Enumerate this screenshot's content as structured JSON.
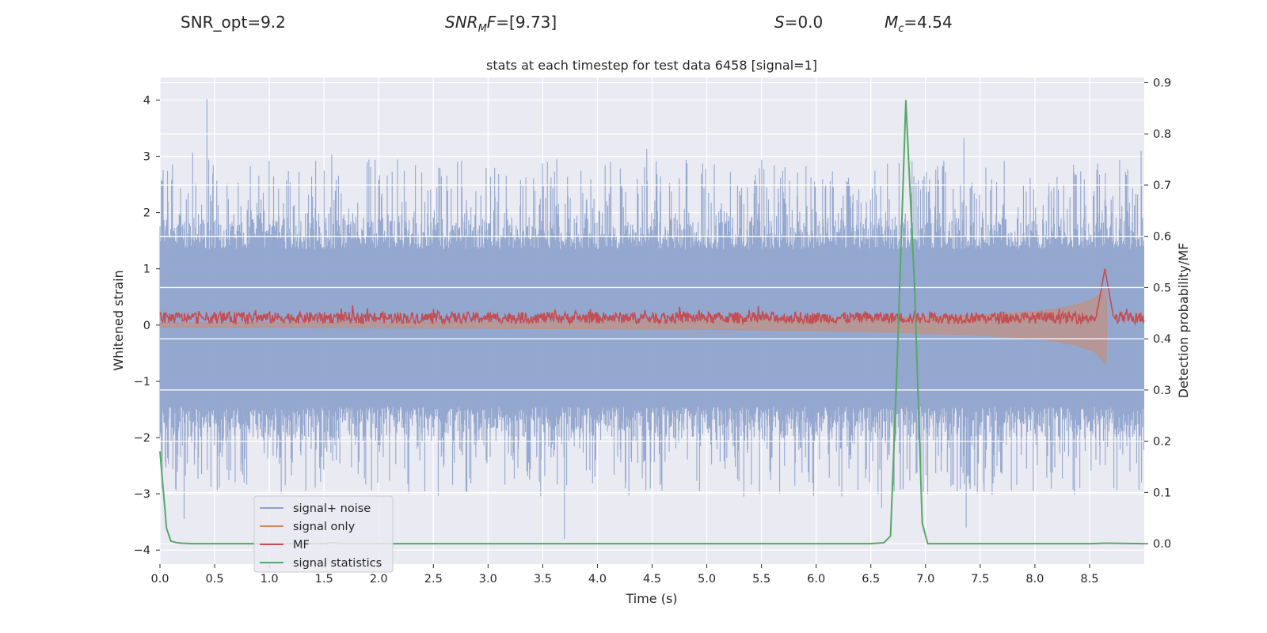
{
  "header": {
    "snr_opt": "SNR_opt=9.2",
    "snr_mf_base": "SNR",
    "snr_mf_sub": "M",
    "snr_mf_rest": "F",
    "snr_mf_value": "=[9.73]",
    "s_symbol": "S",
    "s_value": "=0.0",
    "mc_symbol": "M",
    "mc_sub": "c",
    "mc_value": "=4.54"
  },
  "chart_data": {
    "type": "line",
    "title": "stats at each timestep for test data 6458 [signal=1]",
    "xlabel": "Time (s)",
    "ylabel": "Whitened strain",
    "ylabel_right": "Detection probability/MF",
    "xlim": [
      0.0,
      9.0
    ],
    "ylim": [
      -4.25,
      4.4
    ],
    "ylim_right": [
      -0.04,
      0.91
    ],
    "xticks": [
      "0.0",
      "0.5",
      "1.0",
      "1.5",
      "2.0",
      "2.5",
      "3.0",
      "3.5",
      "4.0",
      "4.5",
      "5.0",
      "5.5",
      "6.0",
      "6.5",
      "7.0",
      "7.5",
      "8.0",
      "8.5"
    ],
    "yticks_left": [
      "4",
      "3",
      "2",
      "1",
      "0",
      "−1",
      "−2",
      "−3",
      "−4"
    ],
    "yticks_left_values": [
      4,
      3,
      2,
      1,
      0,
      -1,
      -2,
      -3,
      -4
    ],
    "yticks_right": [
      "0.9",
      "0.8",
      "0.7",
      "0.6",
      "0.5",
      "0.4",
      "0.3",
      "0.2",
      "0.1",
      "0.0"
    ],
    "yticks_right_values": [
      0.9,
      0.8,
      0.7,
      0.6,
      0.5,
      0.4,
      0.3,
      0.2,
      0.1,
      0.0
    ],
    "grid": true,
    "legend_position": "lower-left",
    "legend": [
      {
        "label": "signal+ noise",
        "color": "#8fa3cc"
      },
      {
        "label": "signal only",
        "color": "#dd8452"
      },
      {
        "label": "MF",
        "color": "#c44e52"
      },
      {
        "label": "signal statistics",
        "color": "#55a868"
      }
    ],
    "series": [
      {
        "name": "signal statistics",
        "axis": "right",
        "color": "#55a868",
        "x": [
          0.0,
          0.02,
          0.06,
          0.1,
          0.15,
          0.2,
          0.3,
          0.5,
          1.0,
          1.5,
          1.58,
          1.7,
          2.0,
          3.0,
          4.0,
          5.0,
          6.0,
          6.5,
          6.62,
          6.68,
          6.74,
          6.82,
          6.9,
          6.97,
          7.02,
          7.5,
          8.0,
          8.5,
          8.65,
          9.0
        ],
        "values": [
          0.18,
          0.13,
          0.03,
          0.005,
          0.002,
          0.001,
          0.0,
          0.0,
          0.0,
          0.0,
          0.002,
          0.0,
          0.0,
          0.0,
          0.0,
          0.0,
          0.0,
          0.0,
          0.002,
          0.015,
          0.35,
          0.865,
          0.5,
          0.04,
          0.0,
          0.0,
          0.0,
          0.0,
          0.001,
          0.0
        ]
      },
      {
        "name": "signal only",
        "axis": "left",
        "color": "#dd8452",
        "envelope": {
          "x": [
            0.0,
            2.0,
            4.0,
            5.0,
            6.0,
            6.5,
            7.0,
            7.5,
            8.0,
            8.2,
            8.4,
            8.55,
            8.62,
            8.65,
            8.66
          ],
          "upper": [
            0.04,
            0.05,
            0.07,
            0.08,
            0.1,
            0.12,
            0.15,
            0.18,
            0.24,
            0.29,
            0.37,
            0.48,
            0.62,
            0.65,
            0.0
          ],
          "lower": [
            -0.04,
            -0.05,
            -0.07,
            -0.08,
            -0.1,
            -0.12,
            -0.15,
            -0.18,
            -0.24,
            -0.29,
            -0.37,
            -0.48,
            -0.62,
            -0.7,
            0.0
          ]
        }
      },
      {
        "name": "MF",
        "axis": "left",
        "color": "#c44e52",
        "baseline": 0.13,
        "jitter": 0.1,
        "spike": {
          "x": 8.64,
          "value": 1.0
        }
      },
      {
        "name": "signal+ noise",
        "axis": "left",
        "color": "#8fa3cc",
        "band_upper": 1.35,
        "band_lower": -1.45,
        "peaks": [
          {
            "x": 0.43,
            "value": 4.02
          },
          {
            "x": 0.3,
            "value": 3.07
          },
          {
            "x": 1.57,
            "value": 3.03
          },
          {
            "x": 4.45,
            "value": 3.13
          },
          {
            "x": 7.35,
            "value": 3.33
          },
          {
            "x": 8.97,
            "value": 3.1
          },
          {
            "x": 0.22,
            "value": -3.45
          },
          {
            "x": 3.7,
            "value": -3.8
          },
          {
            "x": 2.8,
            "value": -2.95
          },
          {
            "x": 7.37,
            "value": -3.6
          },
          {
            "x": 6.6,
            "value": -3.25
          }
        ]
      }
    ]
  }
}
